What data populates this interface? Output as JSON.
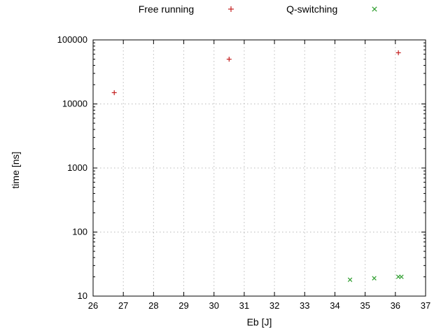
{
  "legend": {
    "items": [
      {
        "label": "Free running",
        "marker": "plus"
      },
      {
        "label": "Q-switching",
        "marker": "cross"
      }
    ]
  },
  "colors": {
    "free_running": "#c41f1f",
    "q_switching": "#2f9e2f",
    "grid": "#bbbbbb",
    "axis": "#000000"
  },
  "chart_data": {
    "type": "scatter",
    "title": "",
    "xlabel": "Eb [J]",
    "ylabel": "time [ns]",
    "xlim": [
      26,
      37
    ],
    "ylim": [
      10,
      100000
    ],
    "y_scale": "log",
    "x_ticks": [
      26,
      27,
      28,
      29,
      30,
      31,
      32,
      33,
      34,
      35,
      36,
      37
    ],
    "y_ticks": [
      10,
      100,
      1000,
      10000,
      100000
    ],
    "grid": true,
    "legend_position": "top-center",
    "series": [
      {
        "name": "Free running",
        "marker": "plus",
        "color": "#c41f1f",
        "points": [
          [
            26.7,
            15000
          ],
          [
            30.5,
            50000
          ],
          [
            36.1,
            63000
          ]
        ]
      },
      {
        "name": "Q-switching",
        "marker": "cross",
        "color": "#2f9e2f",
        "points": [
          [
            34.5,
            18
          ],
          [
            35.3,
            19
          ],
          [
            36.1,
            20
          ],
          [
            36.2,
            20
          ]
        ]
      }
    ]
  }
}
